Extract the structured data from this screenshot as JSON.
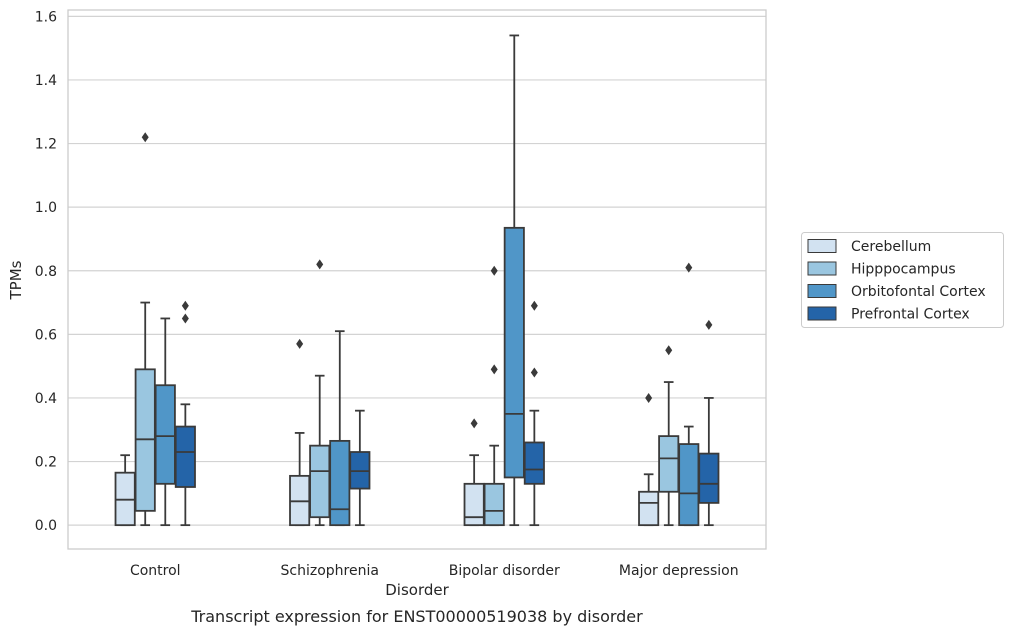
{
  "chart_data": {
    "type": "boxplot",
    "caption": "Transcript expression for ENST00000519038 by disorder",
    "xlabel": "Disorder",
    "ylabel": "TPMs",
    "ylim": [
      -0.075,
      1.62
    ],
    "yticks": [
      0.0,
      0.2,
      0.4,
      0.6,
      0.8,
      1.0,
      1.2,
      1.4,
      1.6
    ],
    "ytick_labels": [
      "0.0",
      "0.2",
      "0.4",
      "0.6",
      "0.8",
      "1.0",
      "1.2",
      "1.4",
      "1.6"
    ],
    "grid": "horizontal",
    "legend_position": "right",
    "categories": [
      "Control",
      "Schizophrenia",
      "Bipolar disorder",
      "Major depression"
    ],
    "series": [
      {
        "name": "Cerebellum",
        "color": "#d2e2f1",
        "boxes": [
          {
            "whislo": 0.0,
            "q1": 0.0,
            "med": 0.08,
            "q3": 0.165,
            "whishi": 0.22,
            "fliers": []
          },
          {
            "whislo": 0.0,
            "q1": 0.0,
            "med": 0.075,
            "q3": 0.155,
            "whishi": 0.29,
            "fliers": [
              0.57
            ]
          },
          {
            "whislo": 0.0,
            "q1": 0.0,
            "med": 0.025,
            "q3": 0.13,
            "whishi": 0.22,
            "fliers": [
              0.32
            ]
          },
          {
            "whislo": 0.0,
            "q1": 0.0,
            "med": 0.07,
            "q3": 0.105,
            "whishi": 0.16,
            "fliers": [
              0.4
            ]
          }
        ]
      },
      {
        "name": "Hipppocampus",
        "color": "#9ac6e0",
        "boxes": [
          {
            "whislo": 0.0,
            "q1": 0.045,
            "med": 0.27,
            "q3": 0.49,
            "whishi": 0.7,
            "fliers": [
              1.22
            ]
          },
          {
            "whislo": 0.0,
            "q1": 0.025,
            "med": 0.17,
            "q3": 0.25,
            "whishi": 0.47,
            "fliers": [
              0.82
            ]
          },
          {
            "whislo": 0.0,
            "q1": 0.0,
            "med": 0.045,
            "q3": 0.13,
            "whishi": 0.25,
            "fliers": [
              0.49,
              0.8
            ]
          },
          {
            "whislo": 0.0,
            "q1": 0.105,
            "med": 0.21,
            "q3": 0.28,
            "whishi": 0.45,
            "fliers": [
              0.55
            ]
          }
        ]
      },
      {
        "name": "Orbitofontal Cortex",
        "color": "#5096c8",
        "boxes": [
          {
            "whislo": 0.0,
            "q1": 0.13,
            "med": 0.28,
            "q3": 0.44,
            "whishi": 0.65,
            "fliers": []
          },
          {
            "whislo": 0.0,
            "q1": 0.0,
            "med": 0.05,
            "q3": 0.265,
            "whishi": 0.61,
            "fliers": []
          },
          {
            "whislo": 0.0,
            "q1": 0.15,
            "med": 0.35,
            "q3": 0.935,
            "whishi": 1.54,
            "fliers": []
          },
          {
            "whislo": 0.0,
            "q1": 0.0,
            "med": 0.1,
            "q3": 0.255,
            "whishi": 0.31,
            "fliers": [
              0.81
            ]
          }
        ]
      },
      {
        "name": "Prefrontal Cortex",
        "color": "#2464a8",
        "boxes": [
          {
            "whislo": 0.0,
            "q1": 0.12,
            "med": 0.23,
            "q3": 0.31,
            "whishi": 0.38,
            "fliers": [
              0.65,
              0.69
            ]
          },
          {
            "whislo": 0.0,
            "q1": 0.115,
            "med": 0.17,
            "q3": 0.23,
            "whishi": 0.36,
            "fliers": []
          },
          {
            "whislo": 0.0,
            "q1": 0.13,
            "med": 0.175,
            "q3": 0.26,
            "whishi": 0.36,
            "fliers": [
              0.48,
              0.69
            ]
          },
          {
            "whislo": 0.0,
            "q1": 0.07,
            "med": 0.13,
            "q3": 0.225,
            "whishi": 0.4,
            "fliers": [
              0.63
            ]
          }
        ]
      }
    ]
  }
}
